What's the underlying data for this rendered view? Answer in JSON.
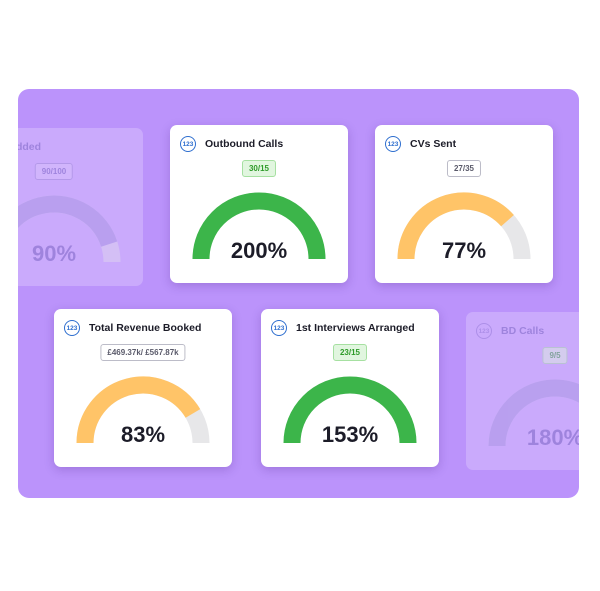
{
  "colors": {
    "panel": "#bb93fb",
    "green": "#3cb54a",
    "amber": "#ffc468",
    "track": "#e7e7e9",
    "muted_purple": "#9a8ed8"
  },
  "icon": {
    "label": "123",
    "name": "number-icon"
  },
  "cards": [
    {
      "id": "added",
      "title": "s Added",
      "badge": "90/100",
      "badge_style": "gray",
      "percent": "90%",
      "fill_fraction": 0.9,
      "color": "muted_purple",
      "faded": true
    },
    {
      "id": "outbound",
      "title": "Outbound Calls",
      "badge": "30/15",
      "badge_style": "green",
      "percent": "200%",
      "fill_fraction": 1.0,
      "color": "green",
      "faded": false
    },
    {
      "id": "cvs",
      "title": "CVs Sent",
      "badge": "27/35",
      "badge_style": "gray",
      "percent": "77%",
      "fill_fraction": 0.77,
      "color": "amber",
      "faded": false
    },
    {
      "id": "revenue",
      "title": "Total Revenue Booked",
      "badge": "£469.37k/ £567.87k",
      "badge_style": "gray",
      "percent": "83%",
      "fill_fraction": 0.83,
      "color": "amber",
      "faded": false
    },
    {
      "id": "interviews",
      "title": "1st Interviews Arranged",
      "badge": "23/15",
      "badge_style": "green",
      "percent": "153%",
      "fill_fraction": 1.0,
      "color": "green",
      "faded": false
    },
    {
      "id": "bd",
      "title": "BD Calls",
      "badge": "9/5",
      "badge_style": "green",
      "percent": "180%",
      "fill_fraction": 1.0,
      "color": "muted_purple",
      "faded": true
    }
  ]
}
